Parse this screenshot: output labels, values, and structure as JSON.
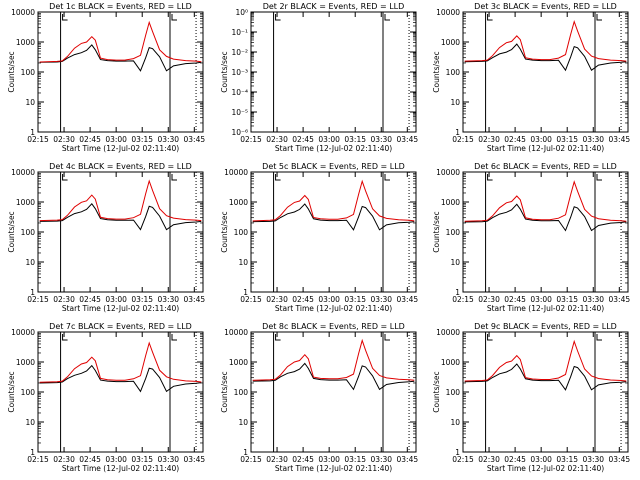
{
  "chart_data": [
    {
      "type": "line",
      "title": "Det 1c BLACK = Events, RED = LLD",
      "xlabel": "Start Time (12-Jul-02 02:11:40)",
      "ylabel": "Counts/sec",
      "yscale": "log",
      "ylim": [
        1,
        10000
      ],
      "xlim": [
        "02:15",
        "03:50"
      ],
      "x_ticks": [
        "02:15",
        "02:30",
        "02:45",
        "03:00",
        "03:15",
        "03:30",
        "03:45"
      ],
      "y_ticks": [
        "1",
        "10",
        "100",
        "1000",
        "10000"
      ],
      "vlines": [
        "02:28",
        "03:31",
        "03:46"
      ],
      "x": [
        "02:16",
        "02:26",
        "02:29",
        "02:32",
        "02:36",
        "02:40",
        "02:43",
        "02:46",
        "02:48",
        "02:51",
        "02:55",
        "03:00",
        "03:05",
        "03:10",
        "03:14",
        "03:17",
        "03:19",
        "03:21",
        "03:25",
        "03:29",
        "03:33",
        "03:40",
        "03:46",
        "03:49"
      ],
      "series": [
        {
          "name": "Events",
          "color": "#000000",
          "values": [
            210,
            215,
            225,
            290,
            380,
            440,
            530,
            800,
            550,
            260,
            240,
            230,
            230,
            235,
            110,
            300,
            650,
            600,
            320,
            110,
            160,
            190,
            200,
            210
          ]
        },
        {
          "name": "LLD",
          "color": "#e00000",
          "values": [
            215,
            225,
            235,
            330,
            620,
            900,
            1000,
            1500,
            1150,
            290,
            260,
            250,
            250,
            280,
            360,
            1700,
            4500,
            2200,
            550,
            330,
            270,
            240,
            230,
            220
          ]
        }
      ]
    },
    {
      "type": "line",
      "title": "Det 2r BLACK = Events, RED = LLD",
      "xlabel": "Start Time (12-Jul-02 02:11:40)",
      "ylabel": "Counts/sec",
      "yscale": "log",
      "ylim": [
        1e-06,
        1
      ],
      "xlim": [
        "02:15",
        "03:50"
      ],
      "x_ticks": [
        "02:15",
        "02:30",
        "02:45",
        "03:00",
        "03:15",
        "03:30",
        "03:45"
      ],
      "y_ticks": [
        "10⁻⁶",
        "10⁻⁵",
        "10⁻⁴",
        "10⁻³",
        "10⁻²",
        "10⁻¹",
        "10⁰"
      ],
      "vlines": [
        "02:28",
        "03:31",
        "03:46"
      ],
      "x": [],
      "series": []
    },
    {
      "type": "line",
      "title": "Det 3c BLACK = Events, RED = LLD",
      "xlabel": "Start Time (12-Jul-02 02:11:40)",
      "ylabel": "Counts/sec",
      "yscale": "log",
      "ylim": [
        1,
        10000
      ],
      "xlim": [
        "02:15",
        "03:50"
      ],
      "x_ticks": [
        "02:15",
        "02:30",
        "02:45",
        "03:00",
        "03:15",
        "03:30",
        "03:45"
      ],
      "y_ticks": [
        "1",
        "10",
        "100",
        "1000",
        "10000"
      ],
      "vlines": [
        "02:28",
        "03:31",
        "03:46"
      ],
      "x": [
        "02:16",
        "02:26",
        "02:29",
        "02:32",
        "02:36",
        "02:40",
        "02:43",
        "02:46",
        "02:48",
        "02:51",
        "02:55",
        "03:00",
        "03:05",
        "03:10",
        "03:14",
        "03:17",
        "03:19",
        "03:21",
        "03:25",
        "03:29",
        "03:33",
        "03:40",
        "03:46",
        "03:49"
      ],
      "series": [
        {
          "name": "Events",
          "color": "#000000",
          "values": [
            220,
            225,
            235,
            300,
            400,
            460,
            560,
            850,
            580,
            270,
            250,
            240,
            240,
            245,
            115,
            320,
            700,
            640,
            330,
            115,
            170,
            200,
            210,
            220
          ]
        },
        {
          "name": "LLD",
          "color": "#e00000",
          "values": [
            230,
            240,
            250,
            350,
            650,
            950,
            1050,
            1600,
            1200,
            300,
            270,
            260,
            260,
            290,
            380,
            1800,
            4800,
            2300,
            580,
            340,
            280,
            250,
            240,
            230
          ]
        }
      ]
    },
    {
      "type": "line",
      "title": "Det 4c BLACK = Events, RED = LLD",
      "xlabel": "Start Time (12-Jul-02 02:11:40)",
      "ylabel": "Counts/sec",
      "yscale": "log",
      "ylim": [
        1,
        10000
      ],
      "xlim": [
        "02:15",
        "03:50"
      ],
      "x_ticks": [
        "02:15",
        "02:30",
        "02:45",
        "03:00",
        "03:15",
        "03:30",
        "03:45"
      ],
      "y_ticks": [
        "1",
        "10",
        "100",
        "1000",
        "10000"
      ],
      "vlines": [
        "02:28",
        "03:31",
        "03:46"
      ],
      "x": [
        "02:16",
        "02:26",
        "02:29",
        "02:32",
        "02:36",
        "02:40",
        "02:43",
        "02:46",
        "02:48",
        "02:51",
        "02:55",
        "03:00",
        "03:05",
        "03:10",
        "03:14",
        "03:17",
        "03:19",
        "03:21",
        "03:25",
        "03:29",
        "03:33",
        "03:40",
        "03:46",
        "03:49"
      ],
      "series": [
        {
          "name": "Events",
          "color": "#000000",
          "values": [
            225,
            230,
            240,
            310,
            410,
            470,
            570,
            870,
            600,
            280,
            255,
            245,
            245,
            250,
            120,
            330,
            720,
            660,
            340,
            120,
            175,
            205,
            215,
            225
          ]
        },
        {
          "name": "LLD",
          "color": "#e00000",
          "values": [
            240,
            250,
            260,
            360,
            680,
            980,
            1100,
            1700,
            1250,
            310,
            280,
            270,
            270,
            300,
            390,
            1900,
            5000,
            2400,
            600,
            350,
            290,
            260,
            250,
            240
          ]
        }
      ]
    },
    {
      "type": "line",
      "title": "Det 5c BLACK = Events, RED = LLD",
      "xlabel": "Start Time (12-Jul-02 02:11:40)",
      "ylabel": "Counts/sec",
      "yscale": "log",
      "ylim": [
        1,
        10000
      ],
      "xlim": [
        "02:15",
        "03:50"
      ],
      "x_ticks": [
        "02:15",
        "02:30",
        "02:45",
        "03:00",
        "03:15",
        "03:30",
        "03:45"
      ],
      "y_ticks": [
        "1",
        "10",
        "100",
        "1000",
        "10000"
      ],
      "vlines": [
        "02:28",
        "03:31",
        "03:46"
      ],
      "x": [
        "02:16",
        "02:26",
        "02:29",
        "02:32",
        "02:36",
        "02:40",
        "02:43",
        "02:46",
        "02:48",
        "02:51",
        "02:55",
        "03:00",
        "03:05",
        "03:10",
        "03:14",
        "03:17",
        "03:19",
        "03:21",
        "03:25",
        "03:29",
        "03:33",
        "03:40",
        "03:46",
        "03:49"
      ],
      "series": [
        {
          "name": "Events",
          "color": "#000000",
          "values": [
            220,
            225,
            235,
            305,
            405,
            465,
            565,
            860,
            590,
            275,
            250,
            240,
            240,
            248,
            118,
            325,
            710,
            650,
            335,
            118,
            172,
            202,
            212,
            222
          ]
        },
        {
          "name": "LLD",
          "color": "#e00000",
          "values": [
            235,
            245,
            255,
            355,
            670,
            970,
            1080,
            1650,
            1220,
            305,
            275,
            265,
            265,
            295,
            385,
            1850,
            4900,
            2350,
            590,
            345,
            285,
            255,
            245,
            235
          ]
        }
      ]
    },
    {
      "type": "line",
      "title": "Det 6c BLACK = Events, RED = LLD",
      "xlabel": "Start Time (12-Jul-02 02:11:40)",
      "ylabel": "Counts/sec",
      "yscale": "log",
      "ylim": [
        1,
        10000
      ],
      "xlim": [
        "02:15",
        "03:50"
      ],
      "x_ticks": [
        "02:15",
        "02:30",
        "02:45",
        "03:00",
        "03:15",
        "03:30",
        "03:45"
      ],
      "y_ticks": [
        "1",
        "10",
        "100",
        "1000",
        "10000"
      ],
      "vlines": [
        "02:28",
        "03:31",
        "03:46"
      ],
      "x": [
        "02:16",
        "02:26",
        "02:29",
        "02:32",
        "02:36",
        "02:40",
        "02:43",
        "02:46",
        "02:48",
        "02:51",
        "02:55",
        "03:00",
        "03:05",
        "03:10",
        "03:14",
        "03:17",
        "03:19",
        "03:21",
        "03:25",
        "03:29",
        "03:33",
        "03:40",
        "03:46",
        "03:49"
      ],
      "series": [
        {
          "name": "Events",
          "color": "#000000",
          "values": [
            215,
            220,
            230,
            300,
            395,
            455,
            550,
            840,
            575,
            270,
            248,
            238,
            238,
            242,
            112,
            315,
            690,
            630,
            328,
            112,
            165,
            198,
            208,
            218
          ]
        },
        {
          "name": "LLD",
          "color": "#e00000",
          "values": [
            228,
            238,
            248,
            345,
            640,
            940,
            1040,
            1580,
            1180,
            298,
            268,
            258,
            258,
            288,
            375,
            1780,
            4700,
            2280,
            570,
            338,
            278,
            248,
            238,
            228
          ]
        }
      ]
    },
    {
      "type": "line",
      "title": "Det 7c BLACK = Events, RED = LLD",
      "xlabel": "Start Time (12-Jul-02 02:11:40)",
      "ylabel": "Counts/sec",
      "yscale": "log",
      "ylim": [
        1,
        10000
      ],
      "xlim": [
        "02:15",
        "03:50"
      ],
      "x_ticks": [
        "02:15",
        "02:30",
        "02:45",
        "03:00",
        "03:15",
        "03:30",
        "03:45"
      ],
      "y_ticks": [
        "1",
        "10",
        "100",
        "1000",
        "10000"
      ],
      "vlines": [
        "02:28",
        "03:31",
        "03:46"
      ],
      "x": [
        "02:16",
        "02:26",
        "02:29",
        "02:32",
        "02:36",
        "02:40",
        "02:43",
        "02:46",
        "02:48",
        "02:51",
        "02:55",
        "03:00",
        "03:05",
        "03:10",
        "03:14",
        "03:17",
        "03:19",
        "03:21",
        "03:25",
        "03:29",
        "03:33",
        "03:40",
        "03:46",
        "03:49"
      ],
      "series": [
        {
          "name": "Events",
          "color": "#000000",
          "values": [
            200,
            205,
            215,
            280,
            360,
            420,
            500,
            760,
            520,
            250,
            230,
            222,
            222,
            228,
            105,
            285,
            620,
            580,
            305,
            105,
            155,
            185,
            195,
            205
          ]
        },
        {
          "name": "LLD",
          "color": "#e00000",
          "values": [
            210,
            220,
            230,
            320,
            600,
            860,
            960,
            1450,
            1100,
            285,
            255,
            245,
            245,
            275,
            350,
            1650,
            4300,
            2100,
            530,
            320,
            265,
            235,
            225,
            215
          ]
        }
      ]
    },
    {
      "type": "line",
      "title": "Det 8c BLACK = Events, RED = LLD",
      "xlabel": "Start Time (12-Jul-02 02:11:40)",
      "ylabel": "Counts/sec",
      "yscale": "log",
      "ylim": [
        1,
        10000
      ],
      "xlim": [
        "02:15",
        "03:50"
      ],
      "x_ticks": [
        "02:15",
        "02:30",
        "02:45",
        "03:00",
        "03:15",
        "03:30",
        "03:45"
      ],
      "y_ticks": [
        "1",
        "10",
        "100",
        "1000",
        "10000"
      ],
      "vlines": [
        "02:28",
        "03:31",
        "03:46"
      ],
      "x": [
        "02:16",
        "02:26",
        "02:29",
        "02:32",
        "02:36",
        "02:40",
        "02:43",
        "02:46",
        "02:48",
        "02:51",
        "02:55",
        "03:00",
        "03:05",
        "03:10",
        "03:14",
        "03:17",
        "03:19",
        "03:21",
        "03:25",
        "03:29",
        "03:33",
        "03:40",
        "03:46",
        "03:49"
      ],
      "series": [
        {
          "name": "Events",
          "color": "#000000",
          "values": [
            230,
            235,
            245,
            320,
            420,
            480,
            580,
            900,
            610,
            285,
            260,
            250,
            250,
            255,
            122,
            340,
            740,
            680,
            345,
            122,
            178,
            208,
            218,
            228
          ]
        },
        {
          "name": "LLD",
          "color": "#e00000",
          "values": [
            245,
            255,
            265,
            370,
            700,
            1000,
            1120,
            1750,
            1280,
            315,
            285,
            275,
            275,
            305,
            395,
            1950,
            5200,
            2450,
            610,
            355,
            295,
            265,
            255,
            245
          ]
        }
      ]
    },
    {
      "type": "line",
      "title": "Det 9c BLACK = Events, RED = LLD",
      "xlabel": "Start Time (12-Jul-02 02:11:40)",
      "ylabel": "Counts/sec",
      "yscale": "log",
      "ylim": [
        1,
        10000
      ],
      "xlim": [
        "02:15",
        "03:50"
      ],
      "x_ticks": [
        "02:15",
        "02:30",
        "02:45",
        "03:00",
        "03:15",
        "03:30",
        "03:45"
      ],
      "y_ticks": [
        "1",
        "10",
        "100",
        "1000",
        "10000"
      ],
      "vlines": [
        "02:28",
        "03:31",
        "03:46"
      ],
      "x": [
        "02:16",
        "02:26",
        "02:29",
        "02:32",
        "02:36",
        "02:40",
        "02:43",
        "02:46",
        "02:48",
        "02:51",
        "02:55",
        "03:00",
        "03:05",
        "03:10",
        "03:14",
        "03:17",
        "03:19",
        "03:21",
        "03:25",
        "03:29",
        "03:33",
        "03:40",
        "03:46",
        "03:49"
      ],
      "series": [
        {
          "name": "Events",
          "color": "#000000",
          "values": [
            220,
            225,
            235,
            305,
            405,
            465,
            565,
            860,
            590,
            275,
            250,
            240,
            240,
            248,
            118,
            325,
            710,
            650,
            335,
            118,
            172,
            202,
            212,
            222
          ]
        },
        {
          "name": "LLD",
          "color": "#e00000",
          "values": [
            232,
            242,
            252,
            352,
            660,
            960,
            1070,
            1630,
            1210,
            302,
            272,
            262,
            262,
            292,
            382,
            1820,
            4850,
            2320,
            585,
            342,
            282,
            252,
            242,
            232
          ]
        }
      ]
    }
  ]
}
